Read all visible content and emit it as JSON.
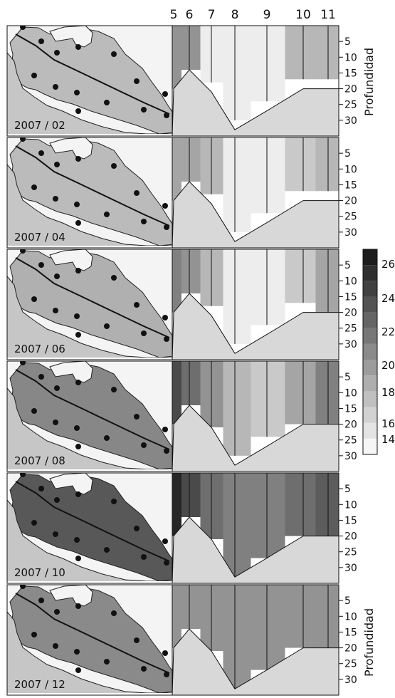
{
  "chart_data": {
    "type": "heatmap",
    "title": "",
    "top_axis": {
      "label": "",
      "ticks": [
        "5",
        "6",
        "7",
        "8",
        "9",
        "10",
        "11"
      ]
    },
    "depth_axis": {
      "label": "Profundidad",
      "ticks": [
        "5",
        "10",
        "15",
        "20",
        "25",
        "30"
      ],
      "range": [
        0,
        35
      ]
    },
    "colorbar": {
      "ticks": [
        "26",
        "24",
        "22",
        "20",
        "18",
        "16",
        "14"
      ],
      "range": [
        14,
        27
      ],
      "step": 1
    },
    "stations": [
      5,
      6,
      7,
      8,
      9,
      10,
      11
    ],
    "station_depths": [
      20,
      14,
      21,
      33,
      27,
      20,
      20
    ],
    "panels": [
      {
        "label": "2007 / 02",
        "values": [
          20,
          20,
          15,
          15,
          15,
          18,
          18
        ]
      },
      {
        "label": "2007 / 04",
        "values": [
          19,
          19,
          18,
          15,
          15,
          17,
          18
        ]
      },
      {
        "label": "2007 / 06",
        "values": [
          21,
          20,
          18,
          15,
          15,
          17,
          19
        ]
      },
      {
        "label": "2007 / 08",
        "values": [
          24,
          22,
          20,
          18,
          17,
          19,
          21
        ]
      },
      {
        "label": "2007 / 10",
        "values": [
          26,
          24,
          22,
          21,
          21,
          22,
          23
        ]
      },
      {
        "label": "2007 / 12",
        "values": [
          20,
          20,
          20,
          20,
          20,
          20,
          20
        ]
      }
    ]
  }
}
